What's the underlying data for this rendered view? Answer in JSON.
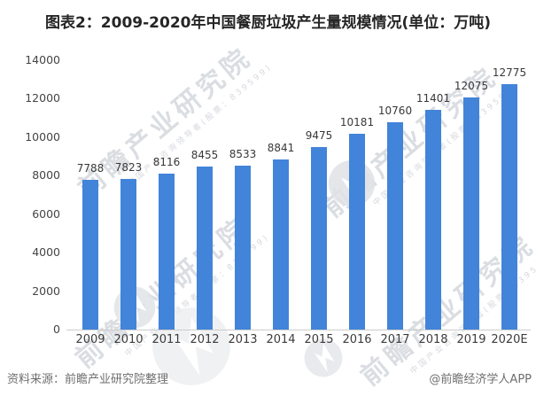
{
  "title": "图表2：2009-2020年中国餐厨垃圾产生量规模情况(单位：万吨)",
  "footer": {
    "source": "资料来源：前瞻产业研究院整理",
    "credit": "@前瞻经济学人APP"
  },
  "watermark": {
    "text": "前瞻产业研究院",
    "subtext": "中国产业咨询领导者(股票：839599)"
  },
  "colors": {
    "bar": "#4284d9",
    "value_label": "#383838",
    "axis_label": "#454545",
    "axis_line": "#cccccc",
    "footer_text": "#6e6e6e",
    "watermark": "#a8adb8"
  },
  "chart_data": {
    "type": "bar",
    "title": "图表2：2009-2020年中国餐厨垃圾产生量规模情况(单位：万吨)",
    "categories": [
      "2009",
      "2010",
      "2011",
      "2012",
      "2013",
      "2014",
      "2015",
      "2016",
      "2017",
      "2018",
      "2019",
      "2020E"
    ],
    "values": [
      7788,
      7823,
      8116,
      8455,
      8533,
      8841,
      9475,
      10181,
      10760,
      11401,
      12075,
      12775
    ],
    "unit": "万吨",
    "xlabel": "",
    "ylabel": "",
    "ylim": [
      0,
      14000
    ],
    "ytick_step": 2000,
    "yticks": [
      0,
      2000,
      4000,
      6000,
      8000,
      10000,
      12000,
      14000
    ],
    "grid": false,
    "data_labels": true,
    "legend": "none"
  }
}
